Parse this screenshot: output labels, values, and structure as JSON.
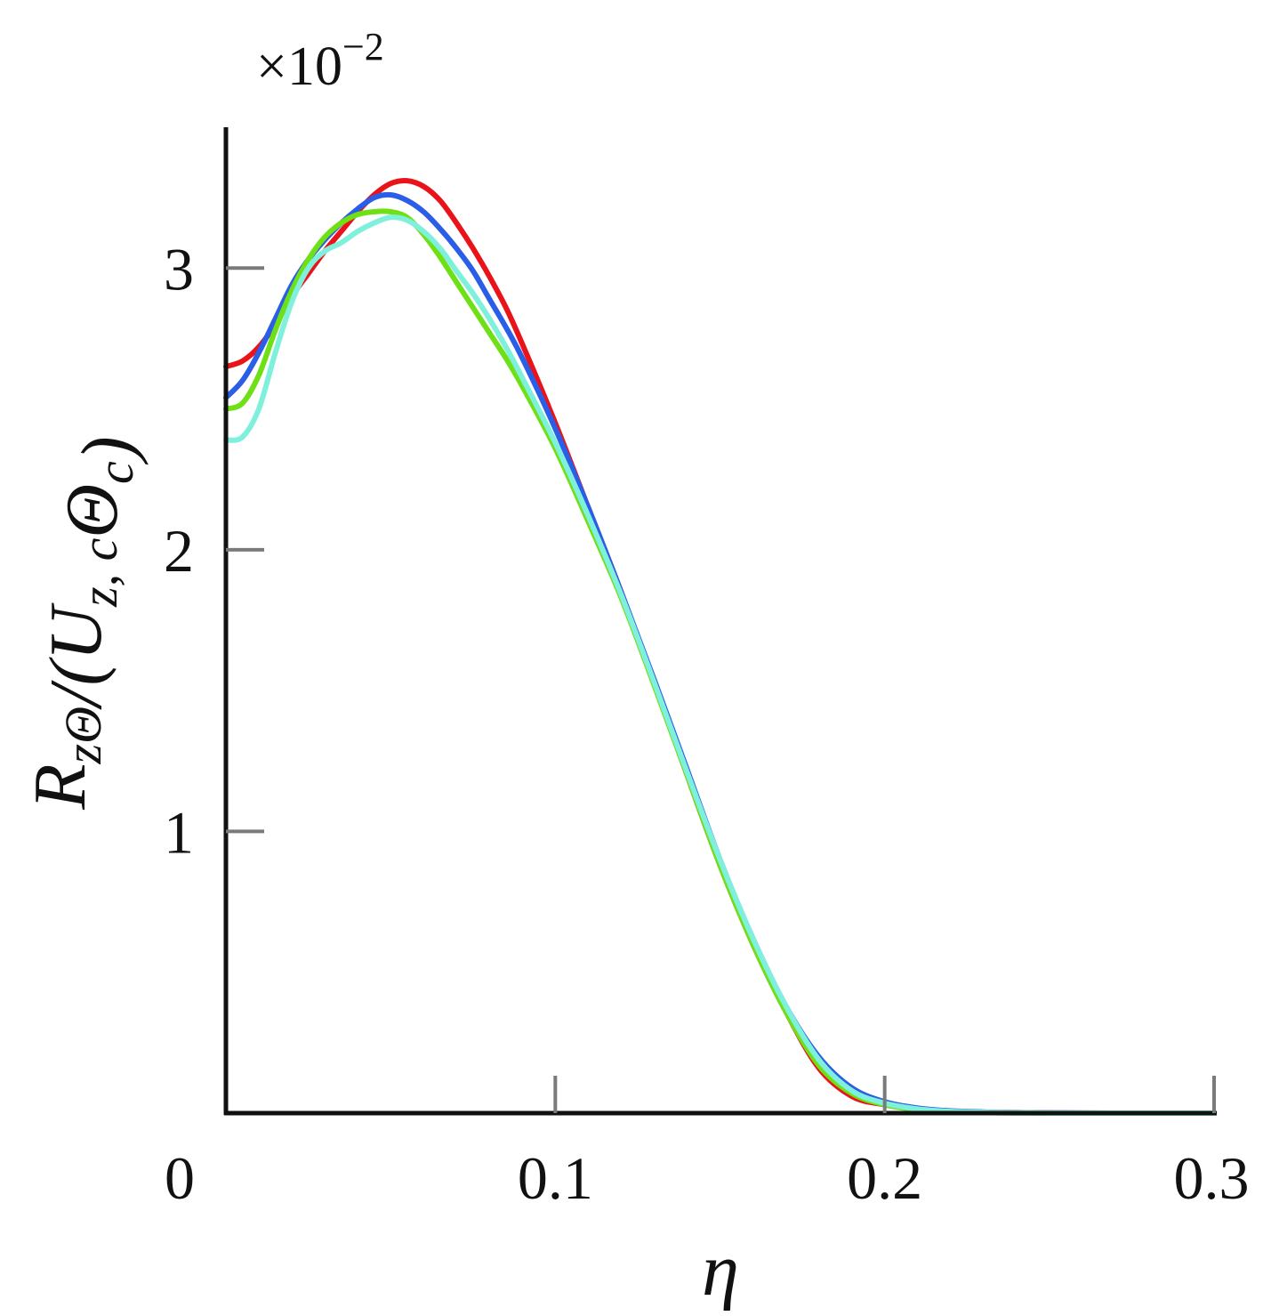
{
  "chart_data": {
    "type": "line",
    "title": "",
    "xlabel": "η",
    "ylabel": "R_{zΘ}/(U_{z, c}Θ_c)",
    "y_multiplier": {
      "base": "×10",
      "exponent": "−2"
    },
    "xlim": [
      0,
      0.3
    ],
    "ylim": [
      0,
      3.5
    ],
    "x_ticks": [
      {
        "value": 0,
        "label": "0"
      },
      {
        "value": 0.1,
        "label": "0.1"
      },
      {
        "value": 0.2,
        "label": "0.2"
      },
      {
        "value": 0.3,
        "label": "0.3"
      }
    ],
    "y_ticks": [
      {
        "value": 1,
        "label": "1"
      },
      {
        "value": 2,
        "label": "2"
      },
      {
        "value": 3,
        "label": "3"
      }
    ],
    "grid": false,
    "legend": "none",
    "series": [
      {
        "color": "#e8141a",
        "x": [
          0,
          0.005,
          0.01,
          0.015,
          0.02,
          0.025,
          0.03,
          0.035,
          0.04,
          0.045,
          0.05,
          0.055,
          0.06,
          0.065,
          0.07,
          0.075,
          0.08,
          0.085,
          0.09,
          0.1,
          0.11,
          0.12,
          0.13,
          0.14,
          0.15,
          0.16,
          0.17,
          0.18,
          0.19,
          0.2,
          0.21,
          0.22,
          0.23,
          0.24,
          0.25,
          0.27,
          0.3
        ],
        "y": [
          2.65,
          2.67,
          2.72,
          2.8,
          2.9,
          2.98,
          3.06,
          3.13,
          3.2,
          3.26,
          3.3,
          3.31,
          3.29,
          3.24,
          3.16,
          3.07,
          2.97,
          2.86,
          2.73,
          2.45,
          2.15,
          1.85,
          1.53,
          1.2,
          0.88,
          0.6,
          0.36,
          0.16,
          0.06,
          0.03,
          0.014,
          0.006,
          0.003,
          0.002,
          0.001,
          0.0,
          0.0
        ]
      },
      {
        "color": "#2b5ee6",
        "x": [
          0,
          0.005,
          0.01,
          0.015,
          0.02,
          0.025,
          0.03,
          0.035,
          0.04,
          0.045,
          0.05,
          0.055,
          0.06,
          0.065,
          0.07,
          0.075,
          0.08,
          0.085,
          0.09,
          0.1,
          0.11,
          0.12,
          0.13,
          0.14,
          0.15,
          0.16,
          0.17,
          0.18,
          0.19,
          0.2,
          0.21,
          0.22,
          0.23,
          0.24,
          0.25,
          0.27,
          0.3
        ],
        "y": [
          2.54,
          2.6,
          2.7,
          2.82,
          2.94,
          3.03,
          3.1,
          3.16,
          3.21,
          3.25,
          3.26,
          3.24,
          3.2,
          3.14,
          3.07,
          2.99,
          2.89,
          2.79,
          2.68,
          2.43,
          2.15,
          1.85,
          1.54,
          1.22,
          0.9,
          0.62,
          0.38,
          0.2,
          0.09,
          0.04,
          0.018,
          0.008,
          0.004,
          0.002,
          0.001,
          0.0,
          0.0
        ]
      },
      {
        "color": "#6ee015",
        "x": [
          0,
          0.005,
          0.01,
          0.015,
          0.02,
          0.025,
          0.03,
          0.035,
          0.04,
          0.045,
          0.05,
          0.055,
          0.06,
          0.065,
          0.07,
          0.075,
          0.08,
          0.085,
          0.09,
          0.1,
          0.11,
          0.12,
          0.13,
          0.14,
          0.15,
          0.16,
          0.17,
          0.18,
          0.19,
          0.2,
          0.21,
          0.22,
          0.23,
          0.24,
          0.25,
          0.27,
          0.3
        ],
        "y": [
          2.5,
          2.52,
          2.62,
          2.78,
          2.92,
          3.03,
          3.11,
          3.16,
          3.19,
          3.2,
          3.2,
          3.18,
          3.12,
          3.04,
          2.95,
          2.86,
          2.77,
          2.68,
          2.58,
          2.36,
          2.1,
          1.83,
          1.52,
          1.2,
          0.88,
          0.6,
          0.36,
          0.17,
          0.07,
          0.03,
          0.012,
          0.005,
          0.002,
          0.001,
          0.0,
          0.0,
          0.0
        ]
      },
      {
        "color": "#7ff0dc",
        "x": [
          0,
          0.005,
          0.01,
          0.015,
          0.02,
          0.025,
          0.03,
          0.035,
          0.04,
          0.045,
          0.05,
          0.055,
          0.06,
          0.065,
          0.07,
          0.075,
          0.08,
          0.085,
          0.09,
          0.1,
          0.11,
          0.12,
          0.13,
          0.14,
          0.15,
          0.16,
          0.17,
          0.18,
          0.19,
          0.2,
          0.21,
          0.22,
          0.23,
          0.24,
          0.25,
          0.27,
          0.3
        ],
        "y": [
          2.39,
          2.4,
          2.5,
          2.7,
          2.88,
          3.0,
          3.06,
          3.09,
          3.13,
          3.16,
          3.18,
          3.17,
          3.13,
          3.07,
          2.99,
          2.91,
          2.82,
          2.72,
          2.61,
          2.38,
          2.12,
          1.84,
          1.53,
          1.21,
          0.9,
          0.62,
          0.38,
          0.19,
          0.08,
          0.035,
          0.015,
          0.006,
          0.003,
          0.001,
          0.0,
          0.0,
          0.0
        ]
      }
    ]
  }
}
